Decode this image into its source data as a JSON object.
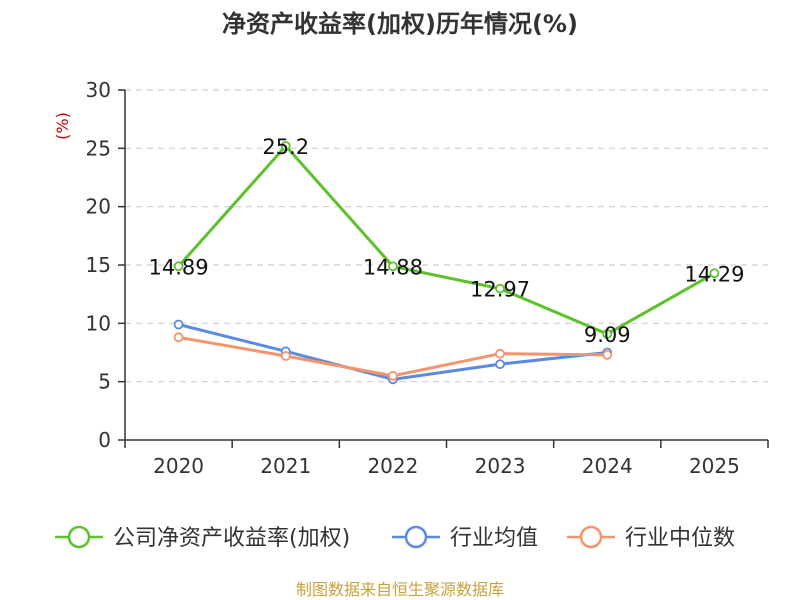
{
  "chart_data": {
    "type": "line",
    "title": "净资产收益率(加权)历年情况(%)",
    "ylabel": "(%)",
    "xlabel": "",
    "categories": [
      "2020",
      "2021",
      "2022",
      "2023",
      "2024",
      "2025"
    ],
    "ylim": [
      0,
      30
    ],
    "yticks": [
      0,
      5,
      10,
      15,
      20,
      25,
      30
    ],
    "grid": true,
    "legend_position": "bottom",
    "series": [
      {
        "name": "公司净资产收益率(加权)",
        "color": "#5cc12a",
        "values": [
          14.89,
          25.2,
          14.88,
          12.97,
          9.09,
          14.29
        ],
        "labels": [
          "14.89",
          "25.2",
          "14.88",
          "12.97",
          "9.09",
          "14.29"
        ]
      },
      {
        "name": "行业均值",
        "color": "#5b8ae0",
        "values": [
          9.9,
          7.6,
          5.2,
          6.5,
          7.5,
          null
        ],
        "labels": []
      },
      {
        "name": "行业中位数",
        "color": "#f5946a",
        "values": [
          8.8,
          7.2,
          5.5,
          7.4,
          7.3,
          null
        ],
        "labels": []
      }
    ]
  },
  "footer": {
    "source": "制图数据来自恒生聚源数据库"
  }
}
